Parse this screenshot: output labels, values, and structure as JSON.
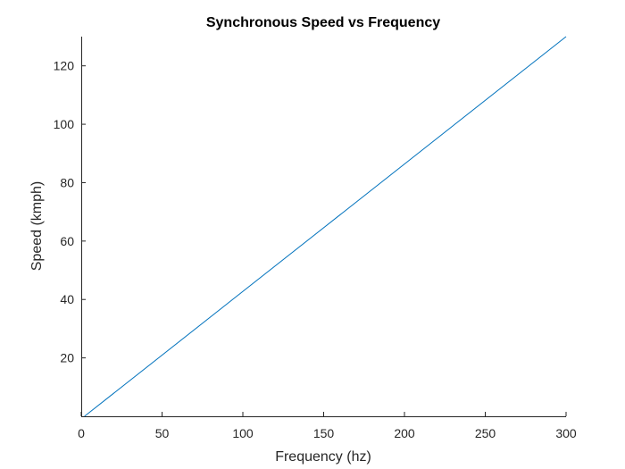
{
  "chart_data": {
    "type": "line",
    "title": "Synchronous Speed vs Frequency",
    "xlabel": "Frequency (hz)",
    "ylabel": "Speed (kmph)",
    "xlim": [
      0,
      300
    ],
    "ylim": [
      0,
      130
    ],
    "x_ticks": [
      0,
      50,
      100,
      150,
      200,
      250,
      300
    ],
    "y_ticks": [
      20,
      40,
      60,
      80,
      100,
      120
    ],
    "grid": false,
    "series": [
      {
        "color": "#0072bd",
        "x": [
          2,
          300
        ],
        "y": [
          0,
          130
        ]
      }
    ]
  }
}
